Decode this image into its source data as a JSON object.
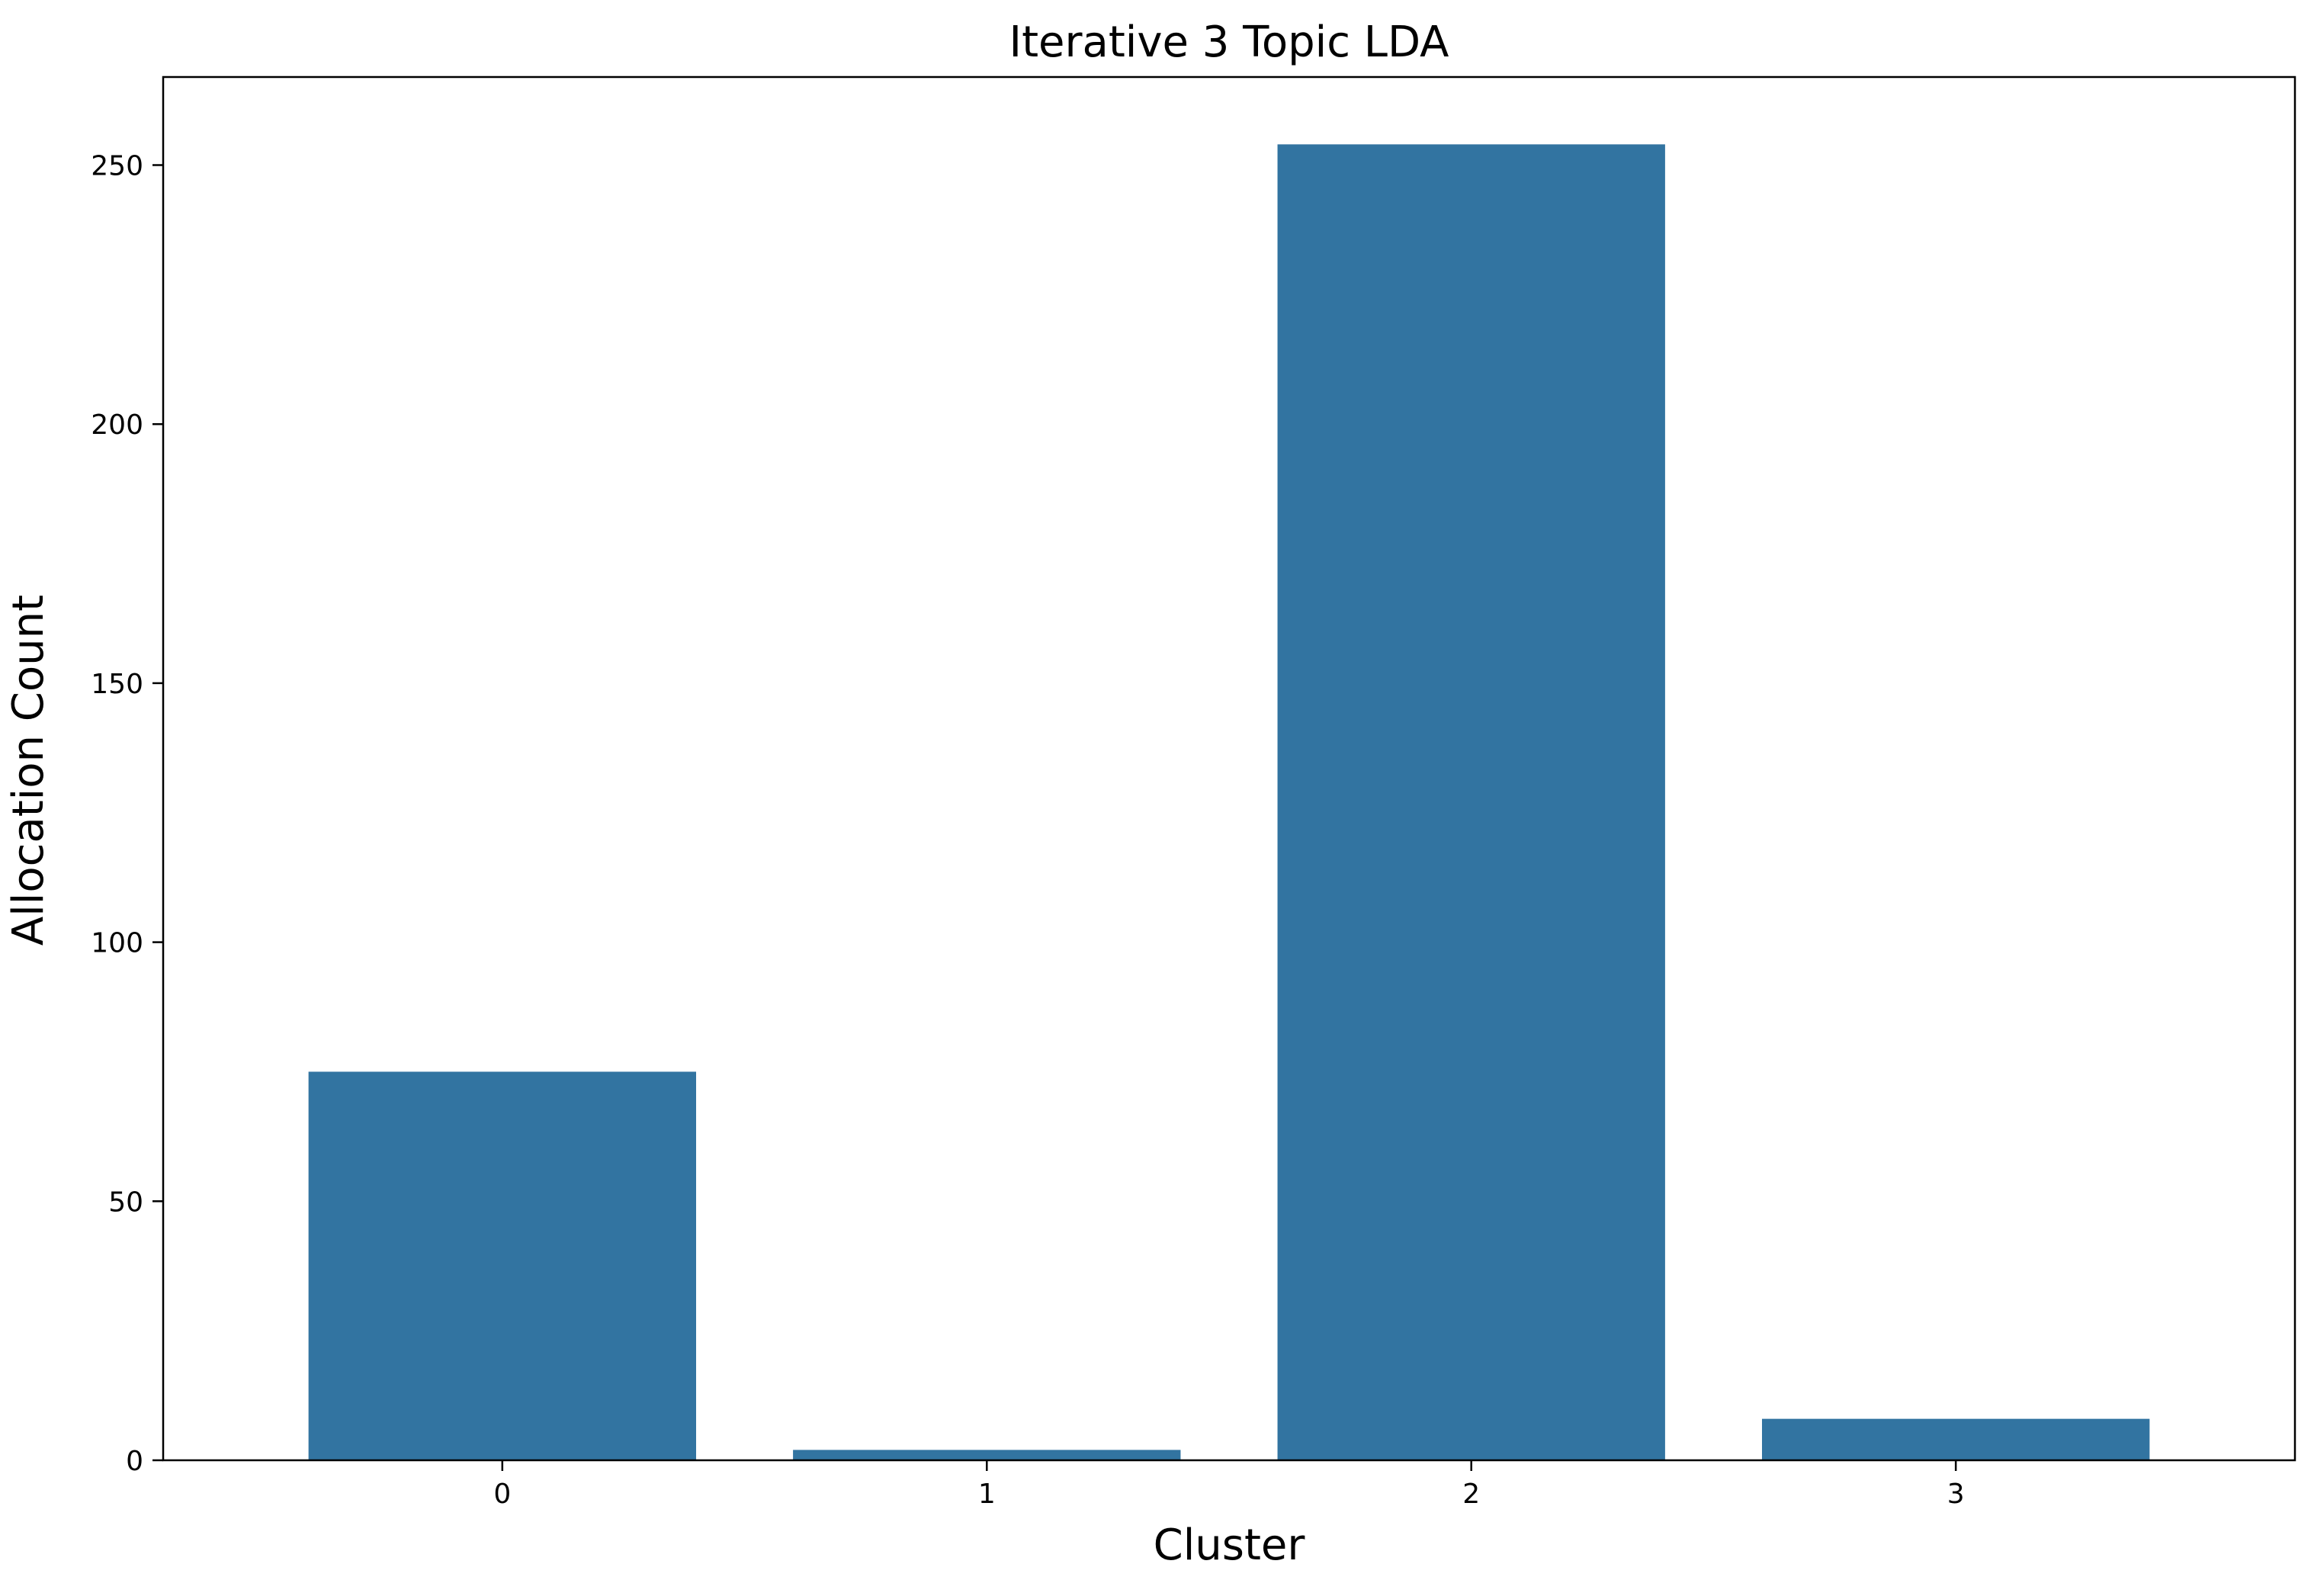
{
  "chart_data": {
    "type": "bar",
    "title": "Iterative 3 Topic LDA",
    "xlabel": "Cluster",
    "ylabel": "Allocation Count",
    "categories": [
      "0",
      "1",
      "2",
      "3"
    ],
    "values": [
      75,
      2,
      254,
      8
    ],
    "ylim": [
      0,
      267
    ],
    "yticks": [
      0,
      50,
      100,
      150,
      200,
      250
    ],
    "grid": false,
    "legend": "none",
    "bar_color": "#3274A1"
  }
}
